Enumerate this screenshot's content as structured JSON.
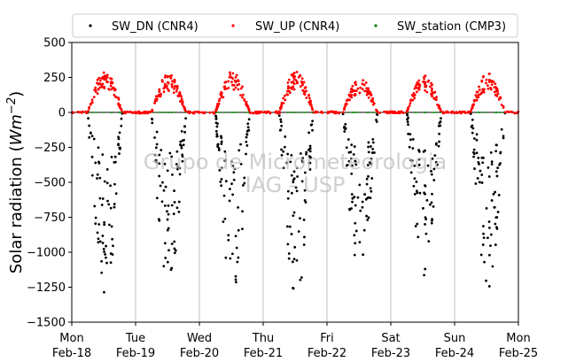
{
  "chart_data": {
    "type": "scatter",
    "ylabel_text": "Solar radiation (",
    "ylabel_math": "Wm",
    "ylabel_exp": "−2",
    "ylabel_close": ")",
    "ylim": [
      -1500,
      500
    ],
    "yticks": [
      500,
      250,
      0,
      -250,
      -500,
      -750,
      -1000,
      -1250,
      -1500
    ],
    "ytick_labels": [
      "500",
      "250",
      "0",
      "−250",
      "−500",
      "−750",
      "−1000",
      "−1250",
      "−1500"
    ],
    "xlim": [
      0,
      7
    ],
    "xticks": [
      {
        "day": 0,
        "line1": "Mon",
        "line2": "Feb-18"
      },
      {
        "day": 1,
        "line1": "Tue",
        "line2": "Feb-19"
      },
      {
        "day": 2,
        "line1": "Wed",
        "line2": "Feb-20"
      },
      {
        "day": 3,
        "line1": "Thu",
        "line2": "Feb-21"
      },
      {
        "day": 4,
        "line1": "Fri",
        "line2": "Feb-22"
      },
      {
        "day": 5,
        "line1": "Sat",
        "line2": "Feb-23"
      },
      {
        "day": 6,
        "line1": "Sun",
        "line2": "Feb-24"
      },
      {
        "day": 7,
        "line1": "Mon",
        "line2": "Feb-25"
      }
    ],
    "grid": "vertical",
    "legend_position": "top",
    "series": [
      {
        "name": "SW_DN (CNR4)",
        "color": "#000000",
        "daily_peak": [
          -1200,
          -1150,
          -1220,
          -1240,
          -1100,
          -1080,
          -1150
        ]
      },
      {
        "name": "SW_UP (CNR4)",
        "color": "#ff0000",
        "daily_peak": [
          300,
          280,
          295,
          305,
          250,
          270,
          280
        ]
      },
      {
        "name": "SW_station (CMP3)",
        "color": "#008000",
        "daily_peak": [
          0,
          0,
          0,
          0,
          0,
          0,
          0
        ]
      }
    ],
    "daylight_hours": [
      6,
      19
    ],
    "watermark_line1": "Grupo de Micrometeorologia",
    "watermark_line2": "IAG - USP"
  }
}
